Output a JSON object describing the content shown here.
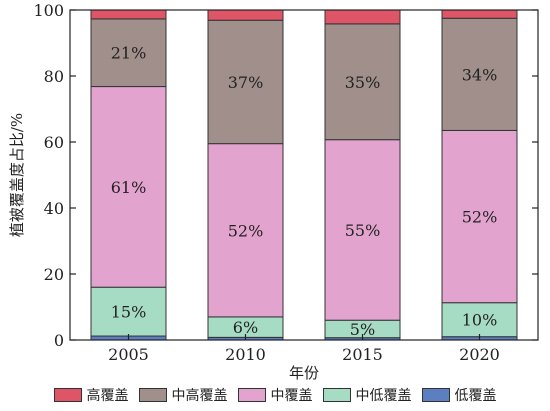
{
  "chart_data": {
    "type": "bar",
    "stacked": true,
    "title": "",
    "xlabel": "年份",
    "ylabel": "植被覆盖度占比/%",
    "ylim": [
      0,
      100
    ],
    "yticks": [
      "0",
      "20",
      "40",
      "60",
      "80",
      "100"
    ],
    "categories": [
      "2005",
      "2010",
      "2015",
      "2020"
    ],
    "series": [
      {
        "name": "低覆盖",
        "color": "#5b7fc0",
        "values": [
          1.2,
          0.8,
          0.7,
          1.0
        ],
        "labels": [
          "",
          "",
          "",
          ""
        ]
      },
      {
        "name": "中低覆盖",
        "color": "#a7dcc4",
        "values": [
          14.8,
          6.2,
          5.3,
          10.3
        ],
        "labels": [
          "15%",
          "6%",
          "5%",
          "10%"
        ]
      },
      {
        "name": "中覆盖",
        "color": "#e3a3cf",
        "values": [
          60.8,
          52.5,
          54.7,
          52.2
        ],
        "labels": [
          "61%",
          "52%",
          "55%",
          "52%"
        ]
      },
      {
        "name": "中高覆盖",
        "color": "#a08f8b",
        "values": [
          20.5,
          37.4,
          35.1,
          34.0
        ],
        "labels": [
          "21%",
          "37%",
          "35%",
          "34%"
        ]
      },
      {
        "name": "高覆盖",
        "color": "#dd5566",
        "values": [
          2.7,
          3.1,
          4.2,
          2.5
        ],
        "labels": [
          "",
          "",
          "",
          ""
        ]
      }
    ],
    "legend": {
      "position": "bottom",
      "order": [
        "高覆盖",
        "中高覆盖",
        "中覆盖",
        "中低覆盖",
        "低覆盖"
      ]
    },
    "grid": false
  }
}
